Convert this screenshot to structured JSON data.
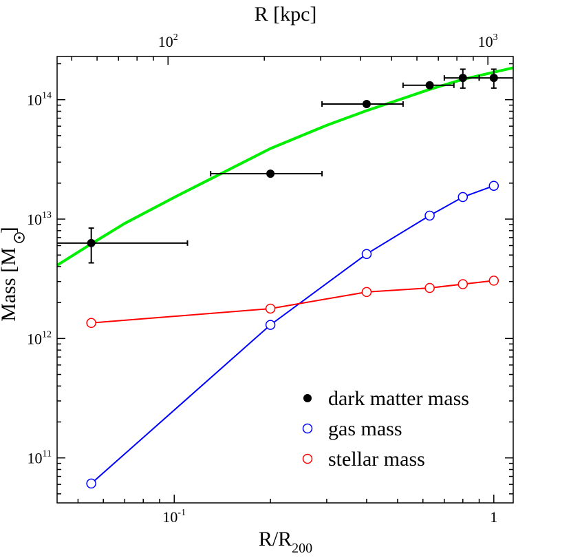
{
  "chart_data": {
    "type": "scatter",
    "xscale": "log",
    "yscale": "log",
    "xlim": [
      0.043,
      1.15
    ],
    "ylim": [
      42000000000.0,
      230000000000000.0
    ],
    "xlabel": "R/R",
    "xlabel_sub": "200",
    "ylabel": "Mass [M",
    "ylabel_suffix": "]",
    "top_xlabel": "R [kpc]",
    "top_xlim_kpc": [
      45,
      1200
    ],
    "x_ticks": [
      {
        "value": 0.1,
        "base": "10",
        "exp": "-1"
      },
      {
        "value": 1,
        "base": "1",
        "exp": ""
      }
    ],
    "top_x_ticks": [
      {
        "value": 100,
        "base": "10",
        "exp": "2"
      },
      {
        "value": 1000,
        "base": "10",
        "exp": "3"
      }
    ],
    "y_ticks": [
      {
        "value": 100000000000.0,
        "base": "10",
        "exp": "11"
      },
      {
        "value": 1000000000000.0,
        "base": "10",
        "exp": "12"
      },
      {
        "value": 10000000000000.0,
        "base": "10",
        "exp": "13"
      },
      {
        "value": 100000000000000.0,
        "base": "10",
        "exp": "14"
      }
    ],
    "legend_position": "bottom-right",
    "series": [
      {
        "name": "dark matter mass",
        "marker": "filled-circle",
        "color": "#000000",
        "points": [
          {
            "x": 0.055,
            "y": 6300000000000.0,
            "xerr": [
              0.043,
              0.11
            ],
            "yerr": [
              4300000000000.0,
              8400000000000.0
            ]
          },
          {
            "x": 0.2,
            "y": 24000000000000.0,
            "xerr": [
              0.13,
              0.29
            ],
            "yerr": null
          },
          {
            "x": 0.4,
            "y": 92000000000000.0,
            "xerr": [
              0.29,
              0.52
            ],
            "yerr": null
          },
          {
            "x": 0.63,
            "y": 132000000000000.0,
            "xerr": [
              0.52,
              0.75
            ],
            "yerr": null
          },
          {
            "x": 0.8,
            "y": 152000000000000.0,
            "xerr": [
              0.7,
              0.9
            ],
            "yerr": [
              125000000000000.0,
              180000000000000.0
            ]
          },
          {
            "x": 1.0,
            "y": 152000000000000.0,
            "xerr": [
              0.9,
              1.15
            ],
            "yerr": [
              125000000000000.0,
              180000000000000.0
            ]
          }
        ]
      },
      {
        "name": "gas mass",
        "marker": "open-circle",
        "color": "#0000ff",
        "points": [
          {
            "x": 0.055,
            "y": 61000000000.0
          },
          {
            "x": 0.2,
            "y": 1300000000000.0
          },
          {
            "x": 0.4,
            "y": 5100000000000.0
          },
          {
            "x": 0.63,
            "y": 10700000000000.0
          },
          {
            "x": 0.8,
            "y": 15300000000000.0
          },
          {
            "x": 1.0,
            "y": 19000000000000.0
          }
        ]
      },
      {
        "name": "stellar mass",
        "marker": "open-circle",
        "color": "#ff0000",
        "points": [
          {
            "x": 0.055,
            "y": 1350000000000.0
          },
          {
            "x": 0.2,
            "y": 1780000000000.0
          },
          {
            "x": 0.4,
            "y": 2450000000000.0
          },
          {
            "x": 0.63,
            "y": 2650000000000.0
          },
          {
            "x": 0.8,
            "y": 2850000000000.0
          },
          {
            "x": 1.0,
            "y": 3050000000000.0
          }
        ]
      }
    ],
    "fit_curve": {
      "name": "dark matter profile fit",
      "color": "#00ee00",
      "x": [
        0.043,
        0.055,
        0.07,
        0.1,
        0.13,
        0.2,
        0.3,
        0.4,
        0.5,
        0.63,
        0.8,
        1.0,
        1.15
      ],
      "y": [
        4100000000000.0,
        6200000000000.0,
        9200000000000.0,
        15200000000000.0,
        21700000000000.0,
        39000000000000.0,
        61000000000000.0,
        81000000000000.0,
        99000000000000.0,
        122000000000000.0,
        148000000000000.0,
        170000000000000.0,
        185000000000000.0
      ]
    }
  }
}
